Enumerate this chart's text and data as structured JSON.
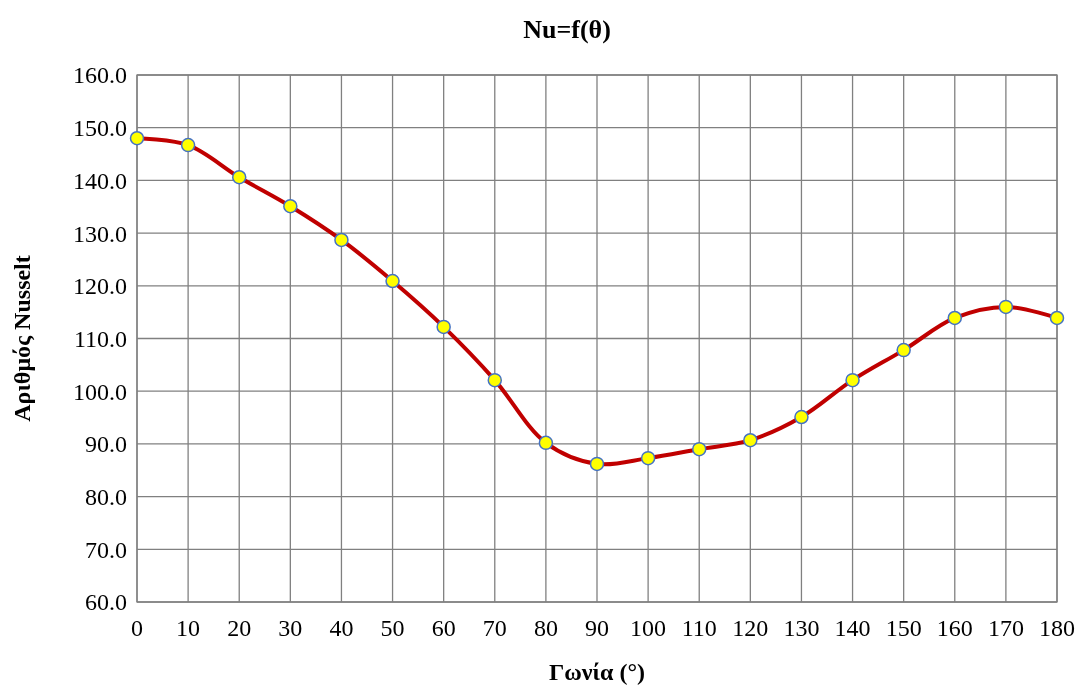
{
  "chart_data": {
    "type": "line",
    "title": "Nu=f(θ)",
    "xlabel": "Γωνία (°)",
    "ylabel": "Αριθμός Nusselt",
    "x": [
      0,
      10,
      20,
      30,
      40,
      50,
      60,
      70,
      80,
      90,
      100,
      110,
      120,
      130,
      140,
      150,
      160,
      170,
      180
    ],
    "series": [
      {
        "color": "#c00000",
        "values": [
          148.0,
          146.7,
          140.6,
          135.1,
          128.7,
          120.9,
          112.2,
          102.1,
          90.2,
          86.2,
          87.3,
          89.0,
          90.7,
          95.1,
          102.1,
          107.8,
          113.9,
          116.0,
          113.9
        ]
      }
    ],
    "xlim": [
      0,
      180
    ],
    "xticks": [
      0,
      10,
      20,
      30,
      40,
      50,
      60,
      70,
      80,
      90,
      100,
      110,
      120,
      130,
      140,
      150,
      160,
      170,
      180
    ],
    "ylim": [
      60,
      160
    ],
    "yticks": [
      {
        "value": 60,
        "label": "60.0"
      },
      {
        "value": 70,
        "label": "70.0"
      },
      {
        "value": 80,
        "label": "80.0"
      },
      {
        "value": 90,
        "label": "90.0"
      },
      {
        "value": 100,
        "label": "100.0"
      },
      {
        "value": 110,
        "label": "110.0"
      },
      {
        "value": 120,
        "label": "120.0"
      },
      {
        "value": 130,
        "label": "130.0"
      },
      {
        "value": 140,
        "label": "140.0"
      },
      {
        "value": 150,
        "label": "150.0"
      },
      {
        "value": 160,
        "label": "160.0"
      }
    ],
    "grid": true,
    "marker": "circle",
    "line_style": "solid"
  }
}
